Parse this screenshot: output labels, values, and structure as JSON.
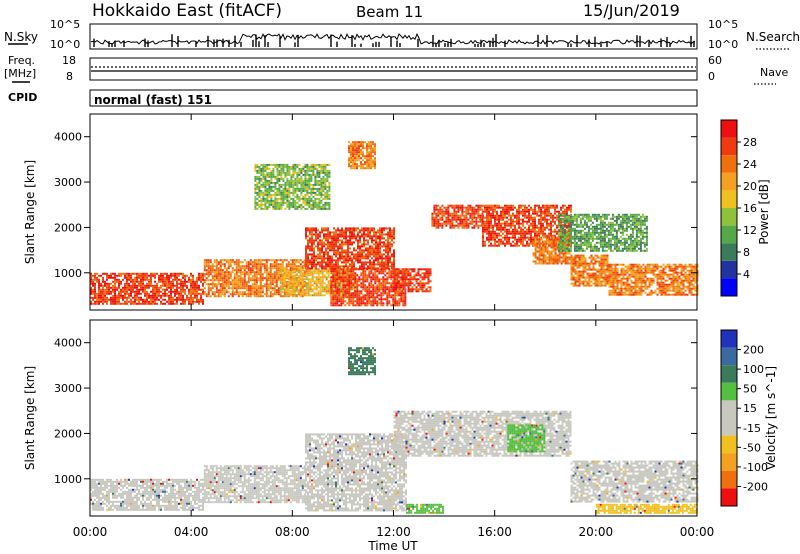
{
  "header": {
    "station": "Hokkaido East (fitACF)",
    "beam": "Beam 11",
    "date": "15/Jun/2019"
  },
  "noise_panel": {
    "left_label": "N.Sky",
    "right_label": "N.Search",
    "left_ticks": [
      "10^5",
      "10^0"
    ],
    "right_ticks": [
      "10^5",
      "10^0"
    ]
  },
  "freq_panel": {
    "left_label_1": "Freq.",
    "left_label_2": "[MHz]",
    "right_label": "Nave",
    "left_ticks": [
      "18",
      "8"
    ],
    "right_ticks": [
      "60",
      "0"
    ]
  },
  "cpid_panel": {
    "label": "CPID",
    "text": "normal (fast) 151"
  },
  "x_axis": {
    "title": "Time UT",
    "ticks": [
      "00:00",
      "04:00",
      "08:00",
      "12:00",
      "16:00",
      "20:00",
      "00:00"
    ]
  },
  "chart_data": [
    {
      "type": "heatmap",
      "quantity": "Power",
      "ylabel": "Slant Range [km]",
      "y_ticks": [
        1000,
        2000,
        3000,
        4000
      ],
      "xlim_hours": [
        0,
        24
      ],
      "colorbar": {
        "label": "Power [dB]",
        "ticks": [
          4,
          8,
          12,
          16,
          20,
          24,
          28
        ],
        "colors": [
          "#0000ff",
          "#2233a0",
          "#3b7a5a",
          "#55a84a",
          "#8fc23a",
          "#f0c020",
          "#f4a020",
          "#f07010",
          "#f03a10",
          "#ee1010"
        ]
      },
      "regions": [
        {
          "x": [
            0,
            4.5
          ],
          "y": [
            300,
            1000
          ],
          "level": 28
        },
        {
          "x": [
            4.5,
            8.5
          ],
          "y": [
            500,
            1300
          ],
          "level": 24
        },
        {
          "x": [
            7.5,
            10.5
          ],
          "y": [
            500,
            1100
          ],
          "level": 20
        },
        {
          "x": [
            8.5,
            12
          ],
          "y": [
            1100,
            2000
          ],
          "level": 28
        },
        {
          "x": [
            9.5,
            12.5
          ],
          "y": [
            300,
            1100
          ],
          "level": 28
        },
        {
          "x": [
            12,
            13.5
          ],
          "y": [
            600,
            1100
          ],
          "level": 28
        },
        {
          "x": [
            13.5,
            15.5
          ],
          "y": [
            2000,
            2500
          ],
          "level": 28
        },
        {
          "x": [
            15.5,
            19
          ],
          "y": [
            1600,
            2500
          ],
          "level": 28
        },
        {
          "x": [
            17.5,
            19
          ],
          "y": [
            1200,
            1800
          ],
          "level": 24
        },
        {
          "x": [
            19,
            20.5
          ],
          "y": [
            700,
            1400
          ],
          "level": 24
        },
        {
          "x": [
            20.5,
            24
          ],
          "y": [
            500,
            1200
          ],
          "level": 24
        },
        {
          "x": [
            10.2,
            11.3
          ],
          "y": [
            3300,
            3900
          ],
          "level": 24
        },
        {
          "x": [
            6.5,
            9.5
          ],
          "y": [
            2400,
            3400
          ],
          "level": 14
        },
        {
          "x": [
            18.5,
            22
          ],
          "y": [
            1500,
            2300
          ],
          "level": 12
        }
      ]
    },
    {
      "type": "heatmap",
      "quantity": "Velocity",
      "ylabel": "Slant Range [km]",
      "y_ticks": [
        1000,
        2000,
        3000,
        4000
      ],
      "xlim_hours": [
        0,
        24
      ],
      "colorbar": {
        "label": "Velocity [m s^-1]",
        "ticks": [
          200,
          100,
          50,
          15,
          -15,
          -50,
          -100,
          -200
        ],
        "colors": [
          "#2233bb",
          "#3b6aa0",
          "#3b7a5a",
          "#55c040",
          "#c8c8c0",
          "#c8c8c0",
          "#f0c020",
          "#f4a020",
          "#f07010",
          "#ee1010"
        ]
      },
      "regions": [
        {
          "x": [
            0,
            4.5
          ],
          "y": [
            300,
            1000
          ],
          "level": 0
        },
        {
          "x": [
            4.5,
            8.5
          ],
          "y": [
            500,
            1300
          ],
          "level": 0
        },
        {
          "x": [
            8.5,
            12.5
          ],
          "y": [
            300,
            2000
          ],
          "level": 0
        },
        {
          "x": [
            12,
            19
          ],
          "y": [
            1500,
            2500
          ],
          "level": 0
        },
        {
          "x": [
            19,
            24
          ],
          "y": [
            500,
            1400
          ],
          "level": 0
        },
        {
          "x": [
            20,
            24
          ],
          "y": [
            250,
            450
          ],
          "level": -50
        },
        {
          "x": [
            12.5,
            14
          ],
          "y": [
            250,
            450
          ],
          "level": 20
        },
        {
          "x": [
            16.5,
            18
          ],
          "y": [
            1600,
            2200
          ],
          "level": 30
        },
        {
          "x": [
            10.2,
            11.3
          ],
          "y": [
            3300,
            3900
          ],
          "level": 40
        }
      ]
    }
  ]
}
